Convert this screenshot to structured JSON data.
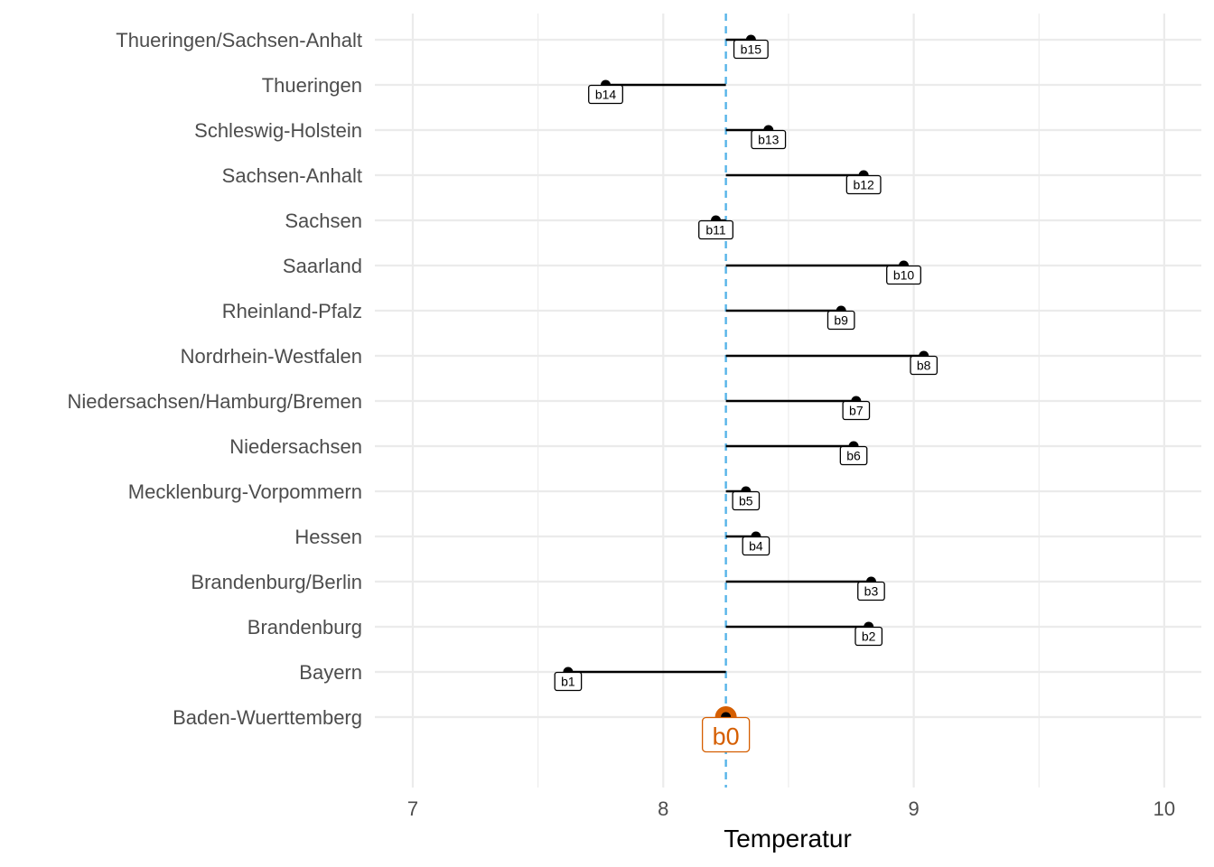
{
  "chart_data": {
    "type": "lollipop",
    "xlabel": "Temperatur",
    "ylabel": "",
    "xlim": [
      6.85,
      10.15
    ],
    "x_ticks": [
      7,
      8,
      9,
      10
    ],
    "x_tick_labels": [
      "7",
      "8",
      "9",
      "10"
    ],
    "reference_line": {
      "value": 8.25,
      "style": "dashed",
      "color": "#56b4e9"
    },
    "categories": [
      "Baden-Wuerttemberg",
      "Bayern",
      "Brandenburg",
      "Brandenburg/Berlin",
      "Hessen",
      "Mecklenburg-Vorpommern",
      "Niedersachsen",
      "Niedersachsen/Hamburg/Bremen",
      "Nordrhein-Westfalen",
      "Rheinland-Pfalz",
      "Saarland",
      "Sachsen",
      "Sachsen-Anhalt",
      "Schleswig-Holstein",
      "Thueringen",
      "Thueringen/Sachsen-Anhalt"
    ],
    "values": [
      8.25,
      7.62,
      8.82,
      8.83,
      8.37,
      8.33,
      8.76,
      8.77,
      9.04,
      8.71,
      8.96,
      8.21,
      8.8,
      8.42,
      7.77,
      8.35
    ],
    "labels": [
      "b0",
      "b1",
      "b2",
      "b3",
      "b4",
      "b5",
      "b6",
      "b7",
      "b8",
      "b9",
      "b10",
      "b11",
      "b12",
      "b13",
      "b14",
      "b15"
    ],
    "highlight": {
      "index": 0,
      "color": "#d55e00"
    },
    "grid": true,
    "legend": "none"
  }
}
